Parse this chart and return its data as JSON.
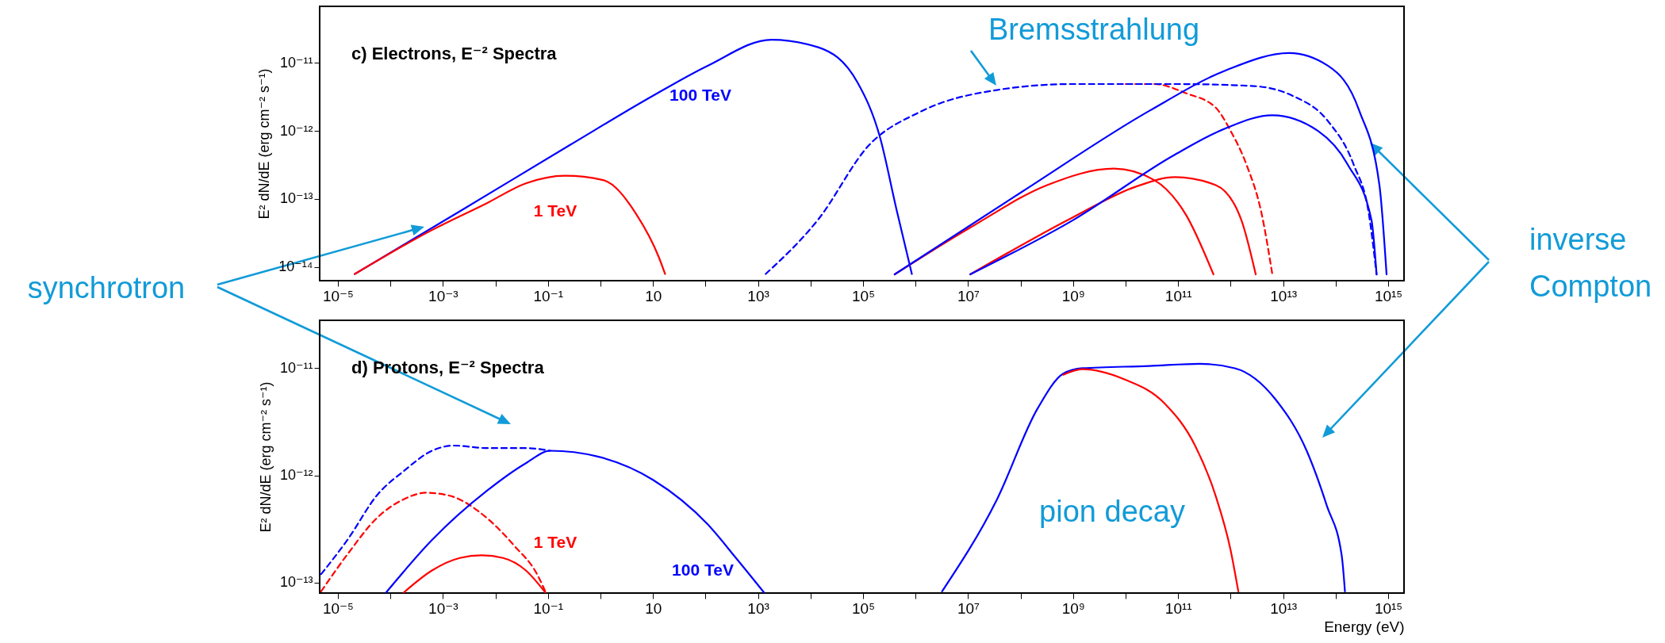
{
  "chart_data": [
    {
      "type": "line",
      "title": "c) Electrons, E⁻² Spectra",
      "ylabel": "E² dN/dE (erg cm⁻² s⁻¹)",
      "log": "xy",
      "grid": false,
      "xlim": [
        4.5e-06,
        2000000000000000.0
      ],
      "ylim": [
        6.3e-15,
        6.8e-11
      ],
      "xticks": [
        {
          "value": 1e-05,
          "label": "10⁻⁵"
        },
        {
          "value": 0.0001,
          "label": null
        },
        {
          "value": 0.001,
          "label": "10⁻³"
        },
        {
          "value": 0.01,
          "label": null
        },
        {
          "value": 0.1,
          "label": "10⁻¹"
        },
        {
          "value": 1,
          "label": null
        },
        10,
        {
          "value": 100,
          "label": null
        },
        {
          "value": 1000.0,
          "label": "10³"
        },
        {
          "value": 10000.0,
          "label": null
        },
        {
          "value": 100000.0,
          "label": "10⁵"
        },
        {
          "value": 1000000.0,
          "label": null
        },
        {
          "value": 10000000.0,
          "label": "10⁷"
        },
        {
          "value": 100000000.0,
          "label": null
        },
        {
          "value": 1000000000.0,
          "label": "10⁹"
        },
        {
          "value": 10000000000.0,
          "label": null
        },
        {
          "value": 100000000000.0,
          "label": "10¹¹"
        },
        {
          "value": 1000000000000.0,
          "label": null
        },
        {
          "value": 10000000000000.0,
          "label": "10¹³"
        },
        {
          "value": 100000000000000.0,
          "label": null
        },
        {
          "value": 1000000000000000.0,
          "label": "10¹⁵"
        }
      ],
      "yticks": [
        {
          "value": 1e-14,
          "label": "10⁻¹⁴"
        },
        {
          "value": 1e-13,
          "label": "10⁻¹³"
        },
        {
          "value": 1e-12,
          "label": "10⁻¹²"
        },
        {
          "value": 1e-11,
          "label": "10⁻¹¹"
        }
      ],
      "series": [
        {
          "name": "100 TeV",
          "color": "#0000ff",
          "x": [
            2.1e-05,
            0.0021,
            0.26,
            10,
            110,
            1800.0,
            14000.0,
            78000.0,
            210000.0,
            430000.0,
            850000.0
          ],
          "values": [
            7.9e-15,
            6.6e-14,
            6.2e-13,
            3.3e-12,
            9.1e-12,
            2.2e-11,
            1.7e-11,
            5.2e-12,
            8.1e-13,
            7.2e-14,
            7.9e-15
          ]
        },
        {
          "name": "1 TeV",
          "color": "#ff0000",
          "x": [
            2.1e-05,
            0.00062,
            0.0069,
            0.038,
            0.21,
            1.12,
            4.8,
            12.9,
            17
          ],
          "values": [
            7.9e-15,
            3.5e-14,
            8.7e-14,
            1.7e-13,
            2.2e-13,
            1.9e-13,
            6e-14,
            1.4e-14,
            7.9e-15
          ]
        },
        {
          "color": "#ff0000",
          "line_style": "dashed",
          "x": [
            10000000000.0,
            35000000000.0,
            140000000000.0,
            520000000000.0,
            1000000000000.0,
            2000000000000.0,
            3900000000000.0,
            6200000000000.0
          ],
          "values": [
            4.9e-12,
            4.9e-12,
            3.6e-12,
            2.2e-12,
            1e-12,
            3.2e-13,
            6e-14,
            7.9e-15
          ]
        },
        {
          "color": "#0000ff",
          "line_style": "dashed",
          "x": [
            1400.0,
            14000.0,
            130000.0,
            1200000.0,
            35000000.0,
            1000000000.0,
            87000000000.0,
            2500000000000.0,
            15000000000000.0,
            71000000000000.0,
            220000000000000.0,
            430000000000000.0,
            600000000000000.0
          ],
          "values": [
            7.9e-15,
            5e-14,
            6.2e-13,
            1.9e-12,
            4e-12,
            4.9e-12,
            4.9e-12,
            4.6e-12,
            3.3e-12,
            1.4e-12,
            3.2e-13,
            5.9e-14,
            7.8e-15
          ]
        },
        {
          "color": "#ff0000",
          "x": [
            400000.0,
            11000000.0,
            320000000.0,
            6000000000.0,
            35000000000.0,
            140000000000.0,
            470000000000.0
          ],
          "values": [
            7.8e-15,
            3.8e-14,
            1.6e-13,
            2.8e-13,
            1.9e-13,
            5.9e-14,
            7.8e-15
          ]
        },
        {
          "color": "#ff0000",
          "x": [
            11000000.0,
            1000000000.0,
            15000000000.0,
            87000000000.0,
            520000000000.0,
            1600000000000.0,
            3000000000000.0
          ],
          "values": [
            7.8e-15,
            5.4e-14,
            1.5e-13,
            2.1e-13,
            1.6e-13,
            4.9e-14,
            7.8e-15
          ]
        },
        {
          "color": "#0000ff",
          "x": [
            400000.0,
            110000000.0,
            29000000000.0,
            810000000000.0,
            13000000000000.0,
            71000000000000.0,
            280000000000000.0,
            680000000000000.0,
            930000000000000.0
          ],
          "values": [
            7.8e-15,
            1.3e-13,
            2e-12,
            7.8e-12,
            1.4e-11,
            9.1e-12,
            2e-12,
            1.6e-13,
            7.8e-15
          ]
        },
        {
          "color": "#0000ff",
          "x": [
            11000000.0,
            1000000000.0,
            87000000000.0,
            810000000000.0,
            6200000000000.0,
            46000000000000.0,
            170000000000000.0,
            480000000000000.0,
            600000000000000.0
          ],
          "values": [
            7.8e-15,
            4.9e-14,
            4.5e-13,
            1.1e-12,
            1.7e-12,
            1e-12,
            3.2e-13,
            4.9e-14,
            7.8e-15
          ]
        }
      ],
      "annotations": [
        "synchrotron",
        "Bremsstrahlung",
        "inverse Compton"
      ]
    },
    {
      "type": "line",
      "title": "d) Protons, E⁻² Spectra",
      "xlabel": "Energy (eV)",
      "ylabel": "E² dN/dE (erg cm⁻² s⁻¹)",
      "log": "xy",
      "grid": false,
      "xlim": [
        4.5e-06,
        2000000000000000.0
      ],
      "ylim": [
        8e-14,
        2.8e-11
      ],
      "xticks": [
        {
          "value": 1e-05,
          "label": "10⁻⁵"
        },
        {
          "value": 0.0001,
          "label": null
        },
        {
          "value": 0.001,
          "label": "10⁻³"
        },
        {
          "value": 0.01,
          "label": null
        },
        {
          "value": 0.1,
          "label": "10⁻¹"
        },
        {
          "value": 1,
          "label": null
        },
        10,
        {
          "value": 100,
          "label": null
        },
        {
          "value": 1000.0,
          "label": "10³"
        },
        {
          "value": 10000.0,
          "label": null
        },
        {
          "value": 100000.0,
          "label": "10⁵"
        },
        {
          "value": 1000000.0,
          "label": null
        },
        {
          "value": 10000000.0,
          "label": "10⁷"
        },
        {
          "value": 100000000.0,
          "label": null
        },
        {
          "value": 1000000000.0,
          "label": "10⁹"
        },
        {
          "value": 10000000000.0,
          "label": null
        },
        {
          "value": 100000000000.0,
          "label": "10¹¹"
        },
        {
          "value": 1000000000000.0,
          "label": null
        },
        {
          "value": 10000000000000.0,
          "label": "10¹³"
        },
        {
          "value": 100000000000000.0,
          "label": null
        },
        {
          "value": 1000000000000000.0,
          "label": "10¹⁵"
        }
      ],
      "yticks": [
        {
          "value": 1e-13,
          "label": "10⁻¹³"
        },
        {
          "value": 1e-12,
          "label": "10⁻¹²"
        },
        {
          "value": 1e-11,
          "label": "10⁻¹¹"
        }
      ],
      "series": [
        {
          "color": "#ff0000",
          "line_style": "dashed",
          "x": [
            4.8e-06,
            1.6e-05,
            5.5e-05,
            0.00018,
            0.00048,
            0.0013,
            0.0069,
            0.023,
            0.062,
            0.089
          ],
          "values": [
            8.3e-14,
            1.9e-13,
            4e-13,
            6e-13,
            6.9e-13,
            6.5e-13,
            4e-13,
            2.2e-13,
            1.2e-13,
            8.3e-14
          ]
        },
        {
          "color": "#0000ff",
          "line_style": "dashed",
          "x": [
            4.8e-06,
            1.6e-05,
            5.5e-05,
            0.00018,
            0.00062,
            0.0016,
            0.0069,
            0.038,
            0.11
          ],
          "values": [
            1.2e-13,
            2.6e-13,
            6.5e-13,
            1.1e-12,
            1.7e-12,
            1.9e-12,
            1.8e-12,
            1.8e-12,
            1.7e-12
          ]
        },
        {
          "name": "1 TeV",
          "color": "#ff0000",
          "x": [
            0.00018,
            0.00062,
            0.0021,
            0.0055,
            0.014,
            0.038,
            0.089
          ],
          "values": [
            8.1e-14,
            1.3e-13,
            1.7e-13,
            1.8e-13,
            1.7e-13,
            1.3e-13,
            8.1e-14
          ]
        },
        {
          "name": "100 TeV",
          "color": "#0000ff",
          "x": [
            8.3e-05,
            0.00062,
            0.0069,
            0.038,
            0.11,
            0.89,
            10,
            110,
            380,
            1300.0
          ],
          "values": [
            8.1e-14,
            2.5e-13,
            7.2e-13,
            1.3e-12,
            1.7e-12,
            1.5e-12,
            9.1e-13,
            3.5e-13,
            1.7e-13,
            8.1e-14
          ]
        },
        {
          "color": "#0000ff",
          "x": [
            3200000.0,
            35000000.0,
            210000000.0,
            650000000.0,
            1500000000.0,
            28000000000.0,
            260000000000.0,
            1200000000000.0,
            7200000000000.0,
            28000000000000.0,
            68000000000000.0,
            130000000000000.0,
            150000000000000.0
          ],
          "values": [
            8.3e-14,
            5.9e-13,
            4.2e-12,
            8.9e-12,
            1e-11,
            1.05e-11,
            1.1e-11,
            1e-11,
            5.1e-12,
            1.7e-12,
            5.2e-13,
            1.8e-13,
            8.3e-14
          ]
        },
        {
          "color": "#ff0000",
          "x": [
            650000000.0,
            1500000000.0,
            9300000000.0,
            55000000000.0,
            210000000000.0,
            510000000000.0,
            1000000000000.0,
            1400000000000.0
          ],
          "values": [
            8.7e-12,
            9.8e-12,
            7.9e-12,
            4.7e-12,
            1.9e-12,
            6.6e-13,
            2e-13,
            8.3e-14
          ]
        }
      ],
      "annotations": [
        "pion decay"
      ]
    }
  ]
}
